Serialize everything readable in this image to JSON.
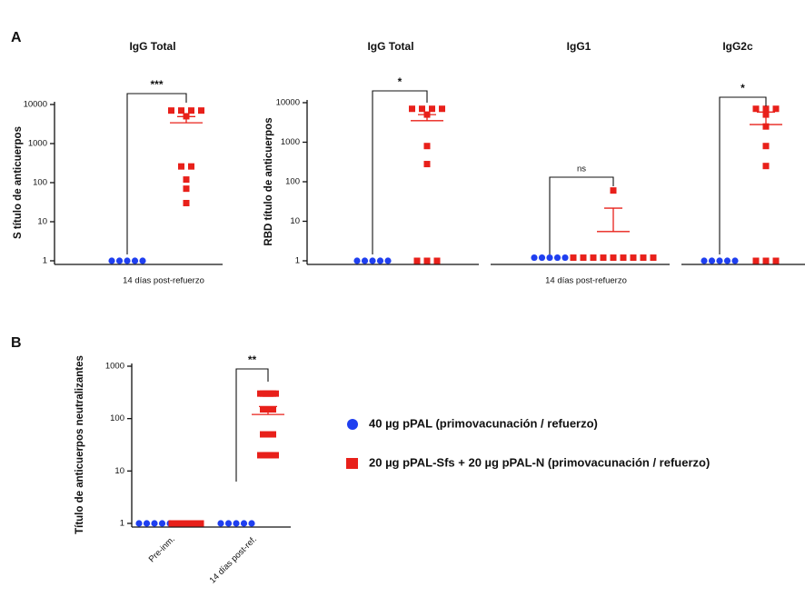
{
  "panel_labels": [
    "A",
    "B"
  ],
  "chart_data": [
    {
      "type": "scatter",
      "title": "IgG Total",
      "ylabel": "S título de anticuerpos",
      "xlabel": "14 días post-refuerzo",
      "significance": "***",
      "log_scale": true,
      "ylim": [
        1,
        10000
      ],
      "yticks": [
        1,
        10,
        100,
        1000,
        10000
      ],
      "series": [
        {
          "color": "#1f3ff0",
          "marker": "circle",
          "values": [
            1,
            1,
            1,
            1,
            1
          ]
        },
        {
          "color": "#e8201a",
          "marker": "square",
          "values": [
            7000,
            7000,
            7000,
            7000,
            5000,
            260,
            260,
            120,
            70,
            30
          ],
          "mean": 3400,
          "sem": 1500
        }
      ]
    },
    {
      "type": "scatter",
      "title": "IgG Total",
      "ylabel": "RBD título de anticuerpos",
      "significance": "*",
      "log_scale": true,
      "ylim": [
        1,
        10000
      ],
      "yticks": [
        1,
        10,
        100,
        1000,
        10000
      ],
      "series": [
        {
          "color": "#1f3ff0",
          "marker": "circle",
          "values": [
            1,
            1,
            1,
            1,
            1
          ]
        },
        {
          "color": "#e8201a",
          "marker": "square",
          "values": [
            7000,
            7000,
            7000,
            7000,
            5000,
            800,
            280,
            1,
            1,
            1
          ],
          "mean": 3500,
          "sem": 1500
        }
      ]
    },
    {
      "type": "scatter",
      "title": "IgG1",
      "xlabel": "14 días post-refuerzo",
      "significance": "ns",
      "log_scale": true,
      "ylim": [
        1,
        10000
      ],
      "series": [
        {
          "color": "#1f3ff0",
          "marker": "circle",
          "values": [
            1.2,
            1.2,
            1.2,
            1.2,
            1.2
          ]
        },
        {
          "color": "#e8201a",
          "marker": "square",
          "values": [
            60,
            1.2,
            1.2,
            1.2,
            1.2,
            1.2,
            1.2,
            1.2,
            1.2,
            1.2
          ],
          "mean": 5.5,
          "sem": 16
        }
      ]
    },
    {
      "type": "scatter",
      "title": "IgG2c",
      "significance": "*",
      "log_scale": true,
      "ylim": [
        1,
        10000
      ],
      "series": [
        {
          "color": "#1f3ff0",
          "marker": "circle",
          "values": [
            1,
            1,
            1,
            1,
            1
          ]
        },
        {
          "color": "#e8201a",
          "marker": "square",
          "values": [
            7000,
            7000,
            7000,
            5000,
            2500,
            800,
            250,
            1,
            1,
            1
          ],
          "mean": 2800,
          "sem": 3000
        }
      ]
    },
    {
      "type": "scatter",
      "ylabel": "Título de anticuerpos neutralizantes",
      "significance": "**",
      "log_scale": true,
      "ylim": [
        1,
        1000
      ],
      "yticks": [
        1,
        10,
        100,
        1000
      ],
      "categories": [
        "Pre-inm.",
        "14 días post-ref."
      ],
      "series": [
        {
          "name": "40 µg pPAL (primovacunación / refuerzo)",
          "color": "#1f3ff0",
          "marker": "circle",
          "values": [
            [
              1,
              1,
              1,
              1,
              1
            ],
            [
              1,
              1,
              1,
              1,
              1
            ]
          ]
        },
        {
          "name": "20 µg pPAL-Sfs + 20 µg pPAL-N (primovacunación / refuerzo)",
          "color": "#e8201a",
          "marker": "square",
          "values": [
            [
              1,
              1,
              1,
              1,
              1,
              1,
              1,
              1
            ],
            [
              300,
              300,
              300,
              150,
              50,
              20,
              20,
              20
            ]
          ],
          "mean": 120,
          "sem": 50
        }
      ]
    }
  ]
}
